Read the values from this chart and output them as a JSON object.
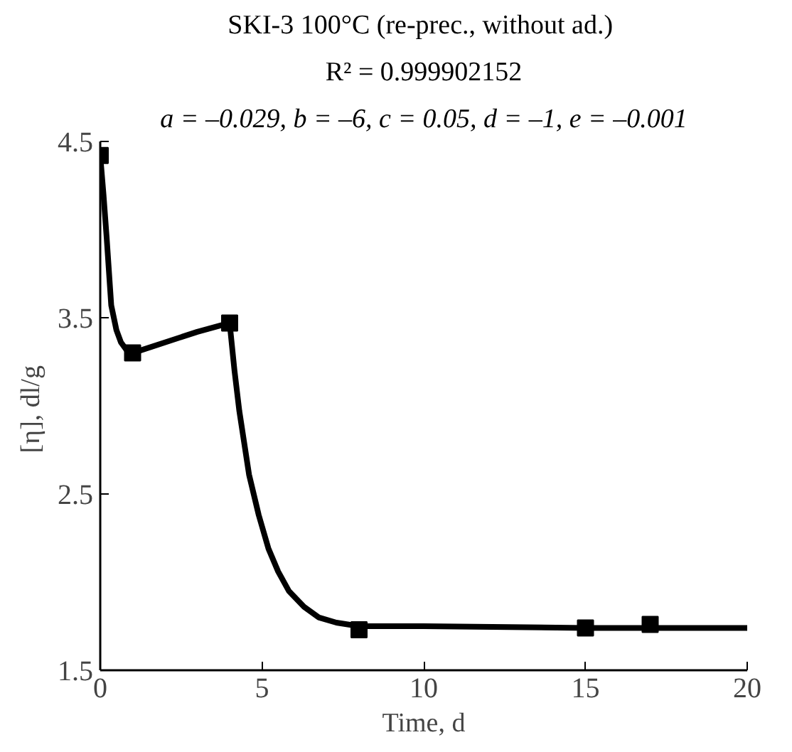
{
  "chart_data": {
    "type": "scatter",
    "title": "SKI-3 100°C  (re-prec., without ad.)",
    "subtitle": "R² = 0.999902152",
    "annotations": [
      "a = –0.029, b = –6, c = 0.05, d = –1, e = –0.001"
    ],
    "xlabel": "Time, d",
    "ylabel": "[η],  dl/g",
    "xlim": [
      0,
      20
    ],
    "ylim": [
      1.5,
      4.5
    ],
    "xticks": [
      0,
      5,
      10,
      15,
      20
    ],
    "yticks": [
      1.5,
      2.5,
      3.5,
      4.5
    ],
    "grid": false,
    "series": [
      {
        "marker": "square",
        "color": "#000000",
        "x": [
          0,
          1,
          4,
          8,
          15,
          17
        ],
        "values": [
          4.42,
          3.3,
          3.47,
          1.73,
          1.74,
          1.76
        ]
      },
      {
        "type": "line",
        "marker": "none",
        "line_style": "solid",
        "color": "#000000",
        "x": [
          0,
          0.1,
          0.2,
          0.34,
          0.5,
          0.64,
          0.8,
          1,
          2,
          3,
          4,
          4.15,
          4.3,
          4.6,
          4.9,
          5.2,
          5.5,
          5.83,
          6.3,
          6.75,
          7.3,
          8,
          10,
          15,
          20
        ],
        "values": [
          4.42,
          4.2,
          3.95,
          3.57,
          3.43,
          3.36,
          3.32,
          3.3,
          3.36,
          3.42,
          3.47,
          3.2,
          2.97,
          2.61,
          2.38,
          2.19,
          2.06,
          1.95,
          1.86,
          1.8,
          1.77,
          1.75,
          1.75,
          1.74,
          1.74
        ]
      }
    ]
  }
}
